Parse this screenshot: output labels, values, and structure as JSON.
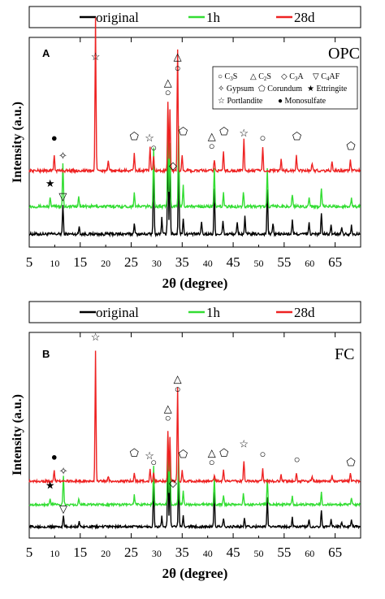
{
  "legend_entries": [
    "original",
    "1h",
    "28d"
  ],
  "colors": {
    "original": "#000000",
    "1h": "#33dd33",
    "28d": "#ee2222"
  },
  "chart_data": [
    {
      "type": "line",
      "panel": "A",
      "title": "OPC",
      "xlabel": "2θ (degree)",
      "ylabel": "Intensity (a.u.)",
      "xlim": [
        5,
        70
      ],
      "xticks": [
        5,
        15,
        25,
        35,
        45,
        55,
        65
      ],
      "xtick_labels": [
        "5",
        "15",
        "25",
        "35",
        "45",
        "55",
        "65"
      ],
      "minor_xticks": [
        10,
        20,
        30,
        40,
        50,
        60
      ],
      "minor_xtick_labels": [
        "10",
        "20",
        "30",
        "40",
        "50",
        "60"
      ],
      "y_ticks_shown": false,
      "legend_position": "top",
      "phase_key": {
        "C3S": "○",
        "C2S": "△",
        "C3A": "◇",
        "C4AF": "▽",
        "Gypsum": "✧",
        "Corundum": "⬠",
        "Ettringite": "★",
        "Portlandite": "☆",
        "Monosulfate": "●"
      },
      "phase_key_text": [
        "C3S",
        "C2S",
        "C3A",
        "C4AF",
        "Gypsum",
        "Corundum",
        "Ettringite",
        "Portlandite",
        "Monosulfate"
      ],
      "series": [
        {
          "name": "original",
          "baseline": 0.05,
          "peaks": [
            [
              11.6,
              0.18
            ],
            [
              14.8,
              0.05
            ],
            [
              25.6,
              0.07
            ],
            [
              29.4,
              0.45
            ],
            [
              31.0,
              0.1
            ],
            [
              32.2,
              0.55
            ],
            [
              32.6,
              0.45
            ],
            [
              34.3,
              0.48
            ],
            [
              35.2,
              0.1
            ],
            [
              38.8,
              0.08
            ],
            [
              41.3,
              0.28
            ],
            [
              43.0,
              0.08
            ],
            [
              45.8,
              0.07
            ],
            [
              47.3,
              0.11
            ],
            [
              51.7,
              0.28
            ],
            [
              52.8,
              0.07
            ],
            [
              56.6,
              0.09
            ],
            [
              59.9,
              0.07
            ],
            [
              62.3,
              0.13
            ],
            [
              64.2,
              0.05
            ],
            [
              66.3,
              0.05
            ],
            [
              68.2,
              0.06
            ]
          ]
        },
        {
          "name": "1h",
          "baseline": 0.22,
          "peaks": [
            [
              9.1,
              0.05
            ],
            [
              11.6,
              0.27
            ],
            [
              14.7,
              0.07
            ],
            [
              25.6,
              0.09
            ],
            [
              29.4,
              0.37
            ],
            [
              32.2,
              0.6
            ],
            [
              32.6,
              0.4
            ],
            [
              34.3,
              0.5
            ],
            [
              35.2,
              0.14
            ],
            [
              41.3,
              0.23
            ],
            [
              43.1,
              0.08
            ],
            [
              47.0,
              0.09
            ],
            [
              51.7,
              0.23
            ],
            [
              56.6,
              0.08
            ],
            [
              59.9,
              0.06
            ],
            [
              62.3,
              0.11
            ],
            [
              68.2,
              0.06
            ]
          ]
        },
        {
          "name": "28d",
          "baseline": 0.44,
          "peaks": [
            [
              9.9,
              0.1
            ],
            [
              18.0,
              0.94
            ],
            [
              20.5,
              0.06
            ],
            [
              25.6,
              0.11
            ],
            [
              28.7,
              0.14
            ],
            [
              29.4,
              0.09
            ],
            [
              32.2,
              0.42
            ],
            [
              32.6,
              0.38
            ],
            [
              34.1,
              0.75
            ],
            [
              35.0,
              0.1
            ],
            [
              41.3,
              0.07
            ],
            [
              43.1,
              0.12
            ],
            [
              47.1,
              0.2
            ],
            [
              50.8,
              0.15
            ],
            [
              54.4,
              0.07
            ],
            [
              57.4,
              0.1
            ],
            [
              60.5,
              0.05
            ],
            [
              64.4,
              0.06
            ],
            [
              68.0,
              0.07
            ]
          ]
        }
      ],
      "markers": [
        {
          "symbol": "●",
          "x": 9.9,
          "y": 0.62
        },
        {
          "symbol": "★",
          "x": 9.1,
          "y": 0.34
        },
        {
          "symbol": "✧",
          "x": 11.6,
          "y": 0.51
        },
        {
          "symbol": "▽",
          "x": 11.6,
          "y": 0.26
        },
        {
          "symbol": "☆",
          "x": 18.0,
          "y": 1.12
        },
        {
          "symbol": "⬠",
          "x": 25.6,
          "y": 0.63
        },
        {
          "symbol": "☆",
          "x": 28.6,
          "y": 0.62
        },
        {
          "symbol": "○",
          "x": 29.4,
          "y": 0.56
        },
        {
          "symbol": "○",
          "x": 32.2,
          "y": 0.9
        },
        {
          "symbol": "△",
          "x": 32.2,
          "y": 0.96
        },
        {
          "symbol": "◇",
          "x": 33.2,
          "y": 0.45
        },
        {
          "symbol": "○",
          "x": 34.1,
          "y": 1.05
        },
        {
          "symbol": "△",
          "x": 34.1,
          "y": 1.12
        },
        {
          "symbol": "⬠",
          "x": 35.2,
          "y": 0.66
        },
        {
          "symbol": "○",
          "x": 40.8,
          "y": 0.57
        },
        {
          "symbol": "△",
          "x": 40.8,
          "y": 0.63
        },
        {
          "symbol": "⬠",
          "x": 43.2,
          "y": 0.66
        },
        {
          "symbol": "☆",
          "x": 47.1,
          "y": 0.65
        },
        {
          "symbol": "○",
          "x": 50.8,
          "y": 0.62
        },
        {
          "symbol": "⬠",
          "x": 57.5,
          "y": 0.63
        },
        {
          "symbol": "⬠",
          "x": 68.1,
          "y": 0.57
        }
      ]
    },
    {
      "type": "line",
      "panel": "B",
      "title": "FC",
      "xlabel": "2θ (degree)",
      "ylabel": "Intensity (a.u.)",
      "xlim": [
        5,
        70
      ],
      "xticks": [
        5,
        15,
        25,
        35,
        45,
        55,
        65
      ],
      "xtick_labels": [
        "5",
        "15",
        "25",
        "35",
        "45",
        "55",
        "65"
      ],
      "minor_xticks": [
        10,
        20,
        30,
        40,
        50,
        60
      ],
      "minor_xtick_labels": [
        "10",
        "20",
        "30",
        "40",
        "50",
        "60"
      ],
      "y_ticks_shown": false,
      "legend_position": "top",
      "series": [
        {
          "name": "original",
          "baseline": 0.05,
          "peaks": [
            [
              11.7,
              0.08
            ],
            [
              14.8,
              0.04
            ],
            [
              29.4,
              0.32
            ],
            [
              31.0,
              0.08
            ],
            [
              32.2,
              0.48
            ],
            [
              32.6,
              0.4
            ],
            [
              34.3,
              0.4
            ],
            [
              35.2,
              0.08
            ],
            [
              41.3,
              0.27
            ],
            [
              43.1,
              0.07
            ],
            [
              47.2,
              0.07
            ],
            [
              51.7,
              0.22
            ],
            [
              56.6,
              0.07
            ],
            [
              59.9,
              0.06
            ],
            [
              62.3,
              0.13
            ],
            [
              64.2,
              0.05
            ],
            [
              66.3,
              0.04
            ],
            [
              68.2,
              0.05
            ]
          ]
        },
        {
          "name": "1h",
          "baseline": 0.22,
          "peaks": [
            [
              9.1,
              0.05
            ],
            [
              11.7,
              0.22
            ],
            [
              14.7,
              0.05
            ],
            [
              25.6,
              0.07
            ],
            [
              29.4,
              0.3
            ],
            [
              32.2,
              0.53
            ],
            [
              32.6,
              0.38
            ],
            [
              34.3,
              0.41
            ],
            [
              35.2,
              0.1
            ],
            [
              41.3,
              0.2
            ],
            [
              43.1,
              0.07
            ],
            [
              47.0,
              0.08
            ],
            [
              51.7,
              0.2
            ],
            [
              56.6,
              0.07
            ],
            [
              62.3,
              0.1
            ],
            [
              68.2,
              0.05
            ]
          ]
        },
        {
          "name": "28d",
          "baseline": 0.4,
          "peaks": [
            [
              9.9,
              0.08
            ],
            [
              18.0,
              1.01
            ],
            [
              20.5,
              0.04
            ],
            [
              25.6,
              0.07
            ],
            [
              28.7,
              0.09
            ],
            [
              29.4,
              0.06
            ],
            [
              32.2,
              0.38
            ],
            [
              32.6,
              0.34
            ],
            [
              34.1,
              0.73
            ],
            [
              35.0,
              0.08
            ],
            [
              41.3,
              0.05
            ],
            [
              43.1,
              0.08
            ],
            [
              47.1,
              0.16
            ],
            [
              50.8,
              0.09
            ],
            [
              54.4,
              0.06
            ],
            [
              57.4,
              0.07
            ],
            [
              60.5,
              0.04
            ],
            [
              64.4,
              0.04
            ],
            [
              68.0,
              0.06
            ]
          ]
        }
      ],
      "markers": [
        {
          "symbol": "●",
          "x": 9.9,
          "y": 0.56
        },
        {
          "symbol": "★",
          "x": 9.1,
          "y": 0.34
        },
        {
          "symbol": "✧",
          "x": 11.7,
          "y": 0.45
        },
        {
          "symbol": "▽",
          "x": 11.7,
          "y": 0.16
        },
        {
          "symbol": "☆",
          "x": 18.0,
          "y": 1.48
        },
        {
          "symbol": "⬠",
          "x": 25.6,
          "y": 0.59
        },
        {
          "symbol": "☆",
          "x": 28.6,
          "y": 0.57
        },
        {
          "symbol": "○",
          "x": 29.4,
          "y": 0.52
        },
        {
          "symbol": "○",
          "x": 32.2,
          "y": 0.86
        },
        {
          "symbol": "△",
          "x": 32.2,
          "y": 0.93
        },
        {
          "symbol": "◇",
          "x": 33.2,
          "y": 0.36
        },
        {
          "symbol": "○",
          "x": 34.1,
          "y": 1.08
        },
        {
          "symbol": "△",
          "x": 34.1,
          "y": 1.16
        },
        {
          "symbol": "⬠",
          "x": 35.2,
          "y": 0.58
        },
        {
          "symbol": "○",
          "x": 40.8,
          "y": 0.52
        },
        {
          "symbol": "△",
          "x": 40.8,
          "y": 0.59
        },
        {
          "symbol": "⬠",
          "x": 43.2,
          "y": 0.59
        },
        {
          "symbol": "☆",
          "x": 47.1,
          "y": 0.66
        },
        {
          "symbol": "○",
          "x": 50.8,
          "y": 0.58
        },
        {
          "symbol": "○",
          "x": 57.5,
          "y": 0.54
        },
        {
          "symbol": "⬠",
          "x": 68.1,
          "y": 0.52
        }
      ]
    }
  ]
}
